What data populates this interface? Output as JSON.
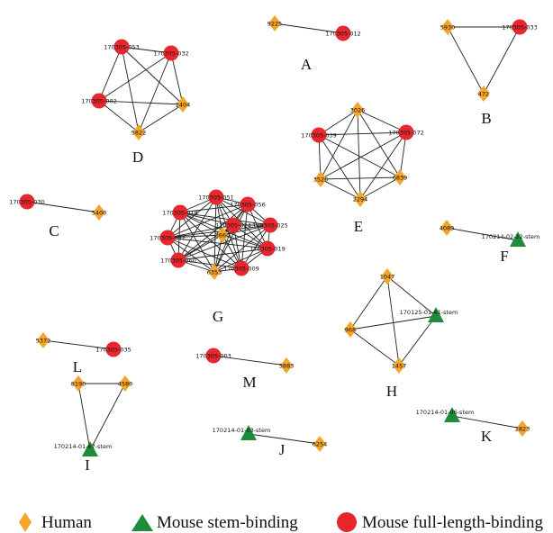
{
  "colors": {
    "human": "#F5A52C",
    "mouse_stem": "#1E8C3A",
    "mouse_full": "#E8262D",
    "edge": "#222222"
  },
  "legend": [
    {
      "shape": "diamond",
      "label": "Human"
    },
    {
      "shape": "triangle",
      "label": "Mouse stem-binding"
    },
    {
      "shape": "circle",
      "label": "Mouse full-length-binding"
    }
  ],
  "clusters": [
    {
      "id": "A",
      "label": "A",
      "nodes": [
        {
          "label": "9225",
          "shape": "diamond"
        },
        {
          "label": "170305-012",
          "shape": "circle"
        }
      ],
      "edges": [
        [
          0,
          1
        ]
      ]
    },
    {
      "id": "B",
      "label": "B",
      "nodes": [
        {
          "label": "5930",
          "shape": "diamond"
        },
        {
          "label": "170305-033",
          "shape": "circle"
        },
        {
          "label": "472",
          "shape": "diamond"
        }
      ],
      "edges": [
        [
          0,
          1
        ],
        [
          0,
          2
        ],
        [
          1,
          2
        ]
      ]
    },
    {
      "id": "C",
      "label": "C",
      "nodes": [
        {
          "label": "170305-030",
          "shape": "circle"
        },
        {
          "label": "5400",
          "shape": "diamond"
        }
      ],
      "edges": [
        [
          0,
          1
        ]
      ]
    },
    {
      "id": "D",
      "label": "D",
      "nodes": [
        {
          "label": "170305-053",
          "shape": "circle"
        },
        {
          "label": "170305-032",
          "shape": "circle"
        },
        {
          "label": "170305-002",
          "shape": "circle"
        },
        {
          "label": "2404",
          "shape": "diamond"
        },
        {
          "label": "5822",
          "shape": "diamond"
        }
      ],
      "edges": "complete"
    },
    {
      "id": "E",
      "label": "E",
      "nodes": [
        {
          "label": "3026",
          "shape": "diamond"
        },
        {
          "label": "170305-072",
          "shape": "circle"
        },
        {
          "label": "6839",
          "shape": "diamond"
        },
        {
          "label": "2294",
          "shape": "diamond"
        },
        {
          "label": "3526",
          "shape": "diamond"
        },
        {
          "label": "170305-039",
          "shape": "circle"
        }
      ],
      "edges": "complete"
    },
    {
      "id": "F",
      "label": "F",
      "nodes": [
        {
          "label": "4089",
          "shape": "diamond"
        },
        {
          "label": "170214-02-22-stem",
          "shape": "triangle"
        }
      ],
      "edges": [
        [
          0,
          1
        ]
      ]
    },
    {
      "id": "G",
      "label": "G",
      "nodes": [
        {
          "label": "170305-051",
          "shape": "circle"
        },
        {
          "label": "170305-056",
          "shape": "circle"
        },
        {
          "label": "170305-025",
          "shape": "circle"
        },
        {
          "label": "170305-019",
          "shape": "circle"
        },
        {
          "label": "170305-009",
          "shape": "circle"
        },
        {
          "label": "6353",
          "shape": "diamond"
        },
        {
          "label": "170305-060",
          "shape": "circle"
        },
        {
          "label": "170305-047",
          "shape": "circle"
        },
        {
          "label": "170305-018",
          "shape": "circle"
        },
        {
          "label": "3660",
          "shape": "diamond"
        },
        {
          "label": "170305-024",
          "shape": "circle"
        }
      ],
      "edges": "complete"
    },
    {
      "id": "H",
      "label": "H",
      "nodes": [
        {
          "label": "1047",
          "shape": "diamond"
        },
        {
          "label": "170125-01-41-stem",
          "shape": "triangle"
        },
        {
          "label": "1457",
          "shape": "diamond"
        },
        {
          "label": "968",
          "shape": "diamond"
        }
      ],
      "edges": "complete"
    },
    {
      "id": "I",
      "label": "I",
      "nodes": [
        {
          "label": "8190",
          "shape": "diamond"
        },
        {
          "label": "4580",
          "shape": "diamond"
        },
        {
          "label": "170214-01-67-stem",
          "shape": "triangle"
        }
      ],
      "edges": [
        [
          0,
          1
        ],
        [
          0,
          2
        ],
        [
          1,
          2
        ]
      ]
    },
    {
      "id": "J",
      "label": "J",
      "nodes": [
        {
          "label": "170214-01-03-stem",
          "shape": "triangle"
        },
        {
          "label": "6254",
          "shape": "diamond"
        }
      ],
      "edges": [
        [
          0,
          1
        ]
      ]
    },
    {
      "id": "K",
      "label": "K",
      "nodes": [
        {
          "label": "170214-01-06-stem",
          "shape": "triangle"
        },
        {
          "label": "2823",
          "shape": "diamond"
        }
      ],
      "edges": [
        [
          0,
          1
        ]
      ]
    },
    {
      "id": "L",
      "label": "L",
      "nodes": [
        {
          "label": "5372",
          "shape": "diamond"
        },
        {
          "label": "170305-035",
          "shape": "circle"
        }
      ],
      "edges": [
        [
          0,
          1
        ]
      ]
    },
    {
      "id": "M",
      "label": "M",
      "nodes": [
        {
          "label": "170305-003",
          "shape": "circle"
        },
        {
          "label": "3883",
          "shape": "diamond"
        }
      ],
      "edges": [
        [
          0,
          1
        ]
      ]
    }
  ]
}
